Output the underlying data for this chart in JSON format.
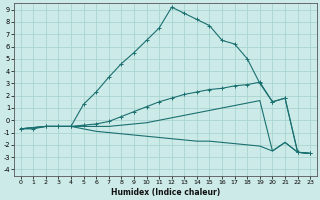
{
  "xlabel": "Humidex (Indice chaleur)",
  "background_color": "#cceae8",
  "grid_color": "#aad4d0",
  "line_color": "#1a7070",
  "xlim": [
    -0.5,
    23.5
  ],
  "ylim": [
    -4.5,
    9.5
  ],
  "xticks": [
    0,
    1,
    2,
    3,
    4,
    5,
    6,
    7,
    8,
    9,
    10,
    11,
    12,
    13,
    14,
    15,
    16,
    17,
    18,
    19,
    20,
    21,
    22,
    23
  ],
  "yticks": [
    -4,
    -3,
    -2,
    -1,
    0,
    1,
    2,
    3,
    4,
    5,
    6,
    7,
    8,
    9
  ],
  "line1_x": [
    0,
    1,
    2,
    3,
    4,
    5,
    6,
    7,
    8,
    9,
    10,
    11,
    12,
    13,
    14,
    15,
    16,
    17,
    18,
    19,
    20,
    21,
    22,
    23
  ],
  "line1_y": [
    -0.7,
    -0.7,
    -0.5,
    -0.5,
    -0.5,
    1.3,
    2.3,
    3.5,
    4.6,
    5.5,
    6.5,
    7.5,
    9.2,
    8.7,
    8.2,
    7.7,
    6.5,
    6.2,
    5.0,
    3.0,
    1.5,
    1.8,
    -2.6,
    -2.7
  ],
  "line2_x": [
    0,
    2,
    3,
    4,
    5,
    6,
    7,
    8,
    9,
    10,
    11,
    12,
    13,
    14,
    15,
    16,
    17,
    18,
    19,
    20,
    21,
    22,
    23
  ],
  "line2_y": [
    -0.7,
    -0.5,
    -0.5,
    -0.5,
    -0.4,
    -0.3,
    -0.1,
    0.3,
    0.7,
    1.1,
    1.5,
    1.8,
    2.1,
    2.3,
    2.5,
    2.6,
    2.8,
    2.9,
    3.1,
    1.5,
    1.8,
    -2.6,
    -2.7
  ],
  "line3_x": [
    0,
    2,
    3,
    4,
    5,
    6,
    7,
    8,
    9,
    10,
    11,
    12,
    13,
    14,
    15,
    16,
    17,
    18,
    19,
    20,
    21,
    22,
    23
  ],
  "line3_y": [
    -0.7,
    -0.5,
    -0.5,
    -0.5,
    -0.5,
    -0.5,
    -0.5,
    -0.4,
    -0.3,
    -0.2,
    0.0,
    0.2,
    0.4,
    0.6,
    0.8,
    1.0,
    1.2,
    1.4,
    1.6,
    -2.5,
    -1.8,
    -2.6,
    -2.7
  ],
  "line4_x": [
    0,
    2,
    3,
    4,
    5,
    6,
    7,
    8,
    9,
    10,
    11,
    12,
    13,
    14,
    15,
    16,
    17,
    18,
    19,
    20,
    21,
    22,
    23
  ],
  "line4_y": [
    -0.7,
    -0.5,
    -0.5,
    -0.5,
    -0.7,
    -0.9,
    -1.0,
    -1.1,
    -1.2,
    -1.3,
    -1.4,
    -1.5,
    -1.6,
    -1.7,
    -1.7,
    -1.8,
    -1.9,
    -2.0,
    -2.1,
    -2.5,
    -1.8,
    -2.6,
    -2.7
  ]
}
